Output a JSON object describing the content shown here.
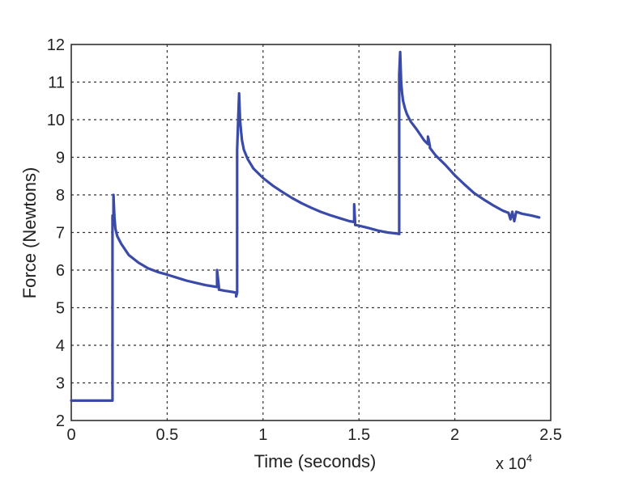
{
  "chart_data": {
    "type": "line",
    "title": "",
    "xlabel": "Time (seconds)",
    "ylabel": "Force (Newtons)",
    "x_multiplier_label": "x 10",
    "x_multiplier_exponent": "4",
    "xlim": [
      0,
      2.5
    ],
    "ylim": [
      2,
      12
    ],
    "x_ticks": [
      0,
      0.5,
      1,
      1.5,
      2,
      2.5
    ],
    "x_tick_labels": [
      "0",
      "0.5",
      "1",
      "1.5",
      "2",
      "2.5"
    ],
    "y_ticks": [
      2,
      3,
      4,
      5,
      6,
      7,
      8,
      9,
      10,
      11,
      12
    ],
    "y_tick_labels": [
      "2",
      "3",
      "4",
      "5",
      "6",
      "7",
      "8",
      "9",
      "10",
      "11",
      "12"
    ],
    "grid": true,
    "color": "#3a4aa8",
    "series": [
      {
        "x": [
          0,
          0.05,
          0.1,
          0.15,
          0.2,
          0.215,
          0.215,
          0.22,
          0.22,
          0.225,
          0.23,
          0.24,
          0.26,
          0.28,
          0.3,
          0.35,
          0.4,
          0.45,
          0.5,
          0.55,
          0.6,
          0.65,
          0.7,
          0.75,
          0.76,
          0.76,
          0.77,
          0.77,
          0.8,
          0.84,
          0.86,
          0.86,
          0.865,
          0.865,
          0.875,
          0.88,
          0.885,
          0.89,
          0.9,
          0.92,
          0.95,
          1.0,
          1.05,
          1.1,
          1.15,
          1.2,
          1.25,
          1.3,
          1.35,
          1.4,
          1.45,
          1.475,
          1.475,
          1.48,
          1.48,
          1.5,
          1.55,
          1.6,
          1.65,
          1.7,
          1.71,
          1.71,
          1.715,
          1.72,
          1.725,
          1.73,
          1.74,
          1.75,
          1.77,
          1.8,
          1.82,
          1.84,
          1.86,
          1.86,
          1.87,
          1.87,
          1.9,
          1.95,
          2.0,
          2.05,
          2.1,
          2.15,
          2.2,
          2.25,
          2.28,
          2.29,
          2.3,
          2.31,
          2.32,
          2.35,
          2.4,
          2.44
        ],
        "y": [
          2.53,
          2.53,
          2.53,
          2.53,
          2.53,
          2.53,
          7.45,
          7.2,
          8.0,
          7.4,
          7.1,
          6.9,
          6.7,
          6.55,
          6.4,
          6.2,
          6.05,
          5.95,
          5.88,
          5.8,
          5.72,
          5.66,
          5.6,
          5.56,
          5.55,
          6.0,
          5.55,
          5.48,
          5.45,
          5.42,
          5.4,
          5.3,
          5.4,
          9.2,
          10.7,
          10.0,
          9.7,
          9.45,
          9.2,
          8.95,
          8.7,
          8.45,
          8.25,
          8.08,
          7.92,
          7.78,
          7.66,
          7.55,
          7.46,
          7.38,
          7.3,
          7.28,
          7.75,
          7.25,
          7.2,
          7.18,
          7.12,
          7.05,
          7.0,
          6.97,
          6.96,
          11.2,
          11.8,
          11.0,
          10.7,
          10.5,
          10.3,
          10.15,
          9.95,
          9.75,
          9.6,
          9.45,
          9.35,
          9.55,
          9.3,
          9.25,
          9.05,
          8.8,
          8.52,
          8.28,
          8.05,
          7.88,
          7.72,
          7.58,
          7.52,
          7.35,
          7.55,
          7.3,
          7.55,
          7.5,
          7.45,
          7.4
        ]
      }
    ]
  }
}
